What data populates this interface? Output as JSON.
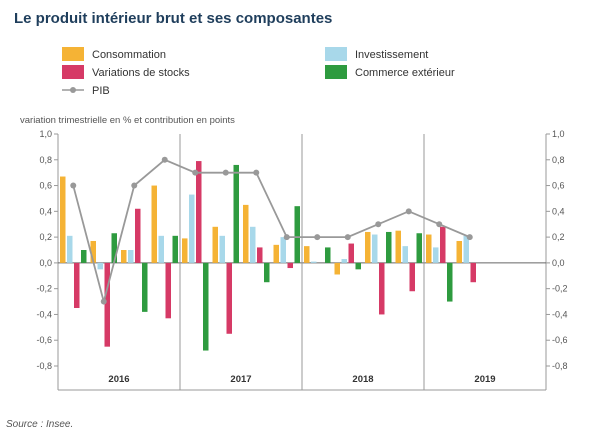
{
  "title": "Le produit intérieur brut et ses composantes",
  "source": "Source : Insee.",
  "chart_data": {
    "type": "bar",
    "ylabel": "variation trimestrielle en % et contribution en points",
    "ylim": [
      -0.8,
      1.0
    ],
    "yticks": [
      "1,0",
      "0,8",
      "0,6",
      "0,4",
      "0,2",
      "0,0",
      "-0,2",
      "-0,4",
      "-0,6",
      "-0,8"
    ],
    "ytick_values": [
      1.0,
      0.8,
      0.6,
      0.4,
      0.2,
      0.0,
      -0.2,
      -0.4,
      -0.6,
      -0.8
    ],
    "years": [
      "2016",
      "2017",
      "2018",
      "2019"
    ],
    "quarters_per_year": [
      4,
      4,
      4,
      2
    ],
    "legend": [
      {
        "name": "Consommation",
        "color": "#f5b335",
        "shape": "rect"
      },
      {
        "name": "Investissement",
        "color": "#a8d8ea",
        "shape": "rect"
      },
      {
        "name": "Variations de stocks",
        "color": "#d63a66",
        "shape": "rect"
      },
      {
        "name": "Commerce extérieur",
        "color": "#2e9b3f",
        "shape": "rect"
      },
      {
        "name": "PIB",
        "color": "#999999",
        "shape": "line"
      }
    ],
    "series": [
      {
        "name": "Consommation",
        "color": "#f5b335",
        "values": [
          0.67,
          0.17,
          0.1,
          0.6,
          0.19,
          0.28,
          0.45,
          0.14,
          0.13,
          -0.09,
          0.24,
          0.25,
          0.22,
          0.17
        ]
      },
      {
        "name": "Investissement",
        "color": "#a8d8ea",
        "values": [
          0.21,
          -0.05,
          0.1,
          0.21,
          0.53,
          0.21,
          0.28,
          0.2,
          0.01,
          0.03,
          0.22,
          0.13,
          0.12,
          0.21
        ]
      },
      {
        "name": "Variations de stocks",
        "color": "#d63a66",
        "values": [
          -0.35,
          -0.65,
          0.42,
          -0.43,
          0.79,
          -0.55,
          0.12,
          -0.04,
          0.0,
          0.15,
          -0.4,
          -0.22,
          0.28,
          -0.15
        ]
      },
      {
        "name": "Commerce extérieur",
        "color": "#2e9b3f",
        "values": [
          0.1,
          0.23,
          -0.38,
          0.21,
          -0.68,
          0.76,
          -0.15,
          0.44,
          0.12,
          -0.05,
          0.24,
          0.23,
          -0.3,
          0.0
        ]
      }
    ],
    "line": {
      "name": "PIB",
      "color": "#999999",
      "values": [
        0.6,
        -0.3,
        0.6,
        0.8,
        0.7,
        0.7,
        0.7,
        0.2,
        0.2,
        0.2,
        0.3,
        0.4,
        0.3,
        0.2
      ]
    },
    "grid": "vertical year separators",
    "legend_position": "top"
  }
}
